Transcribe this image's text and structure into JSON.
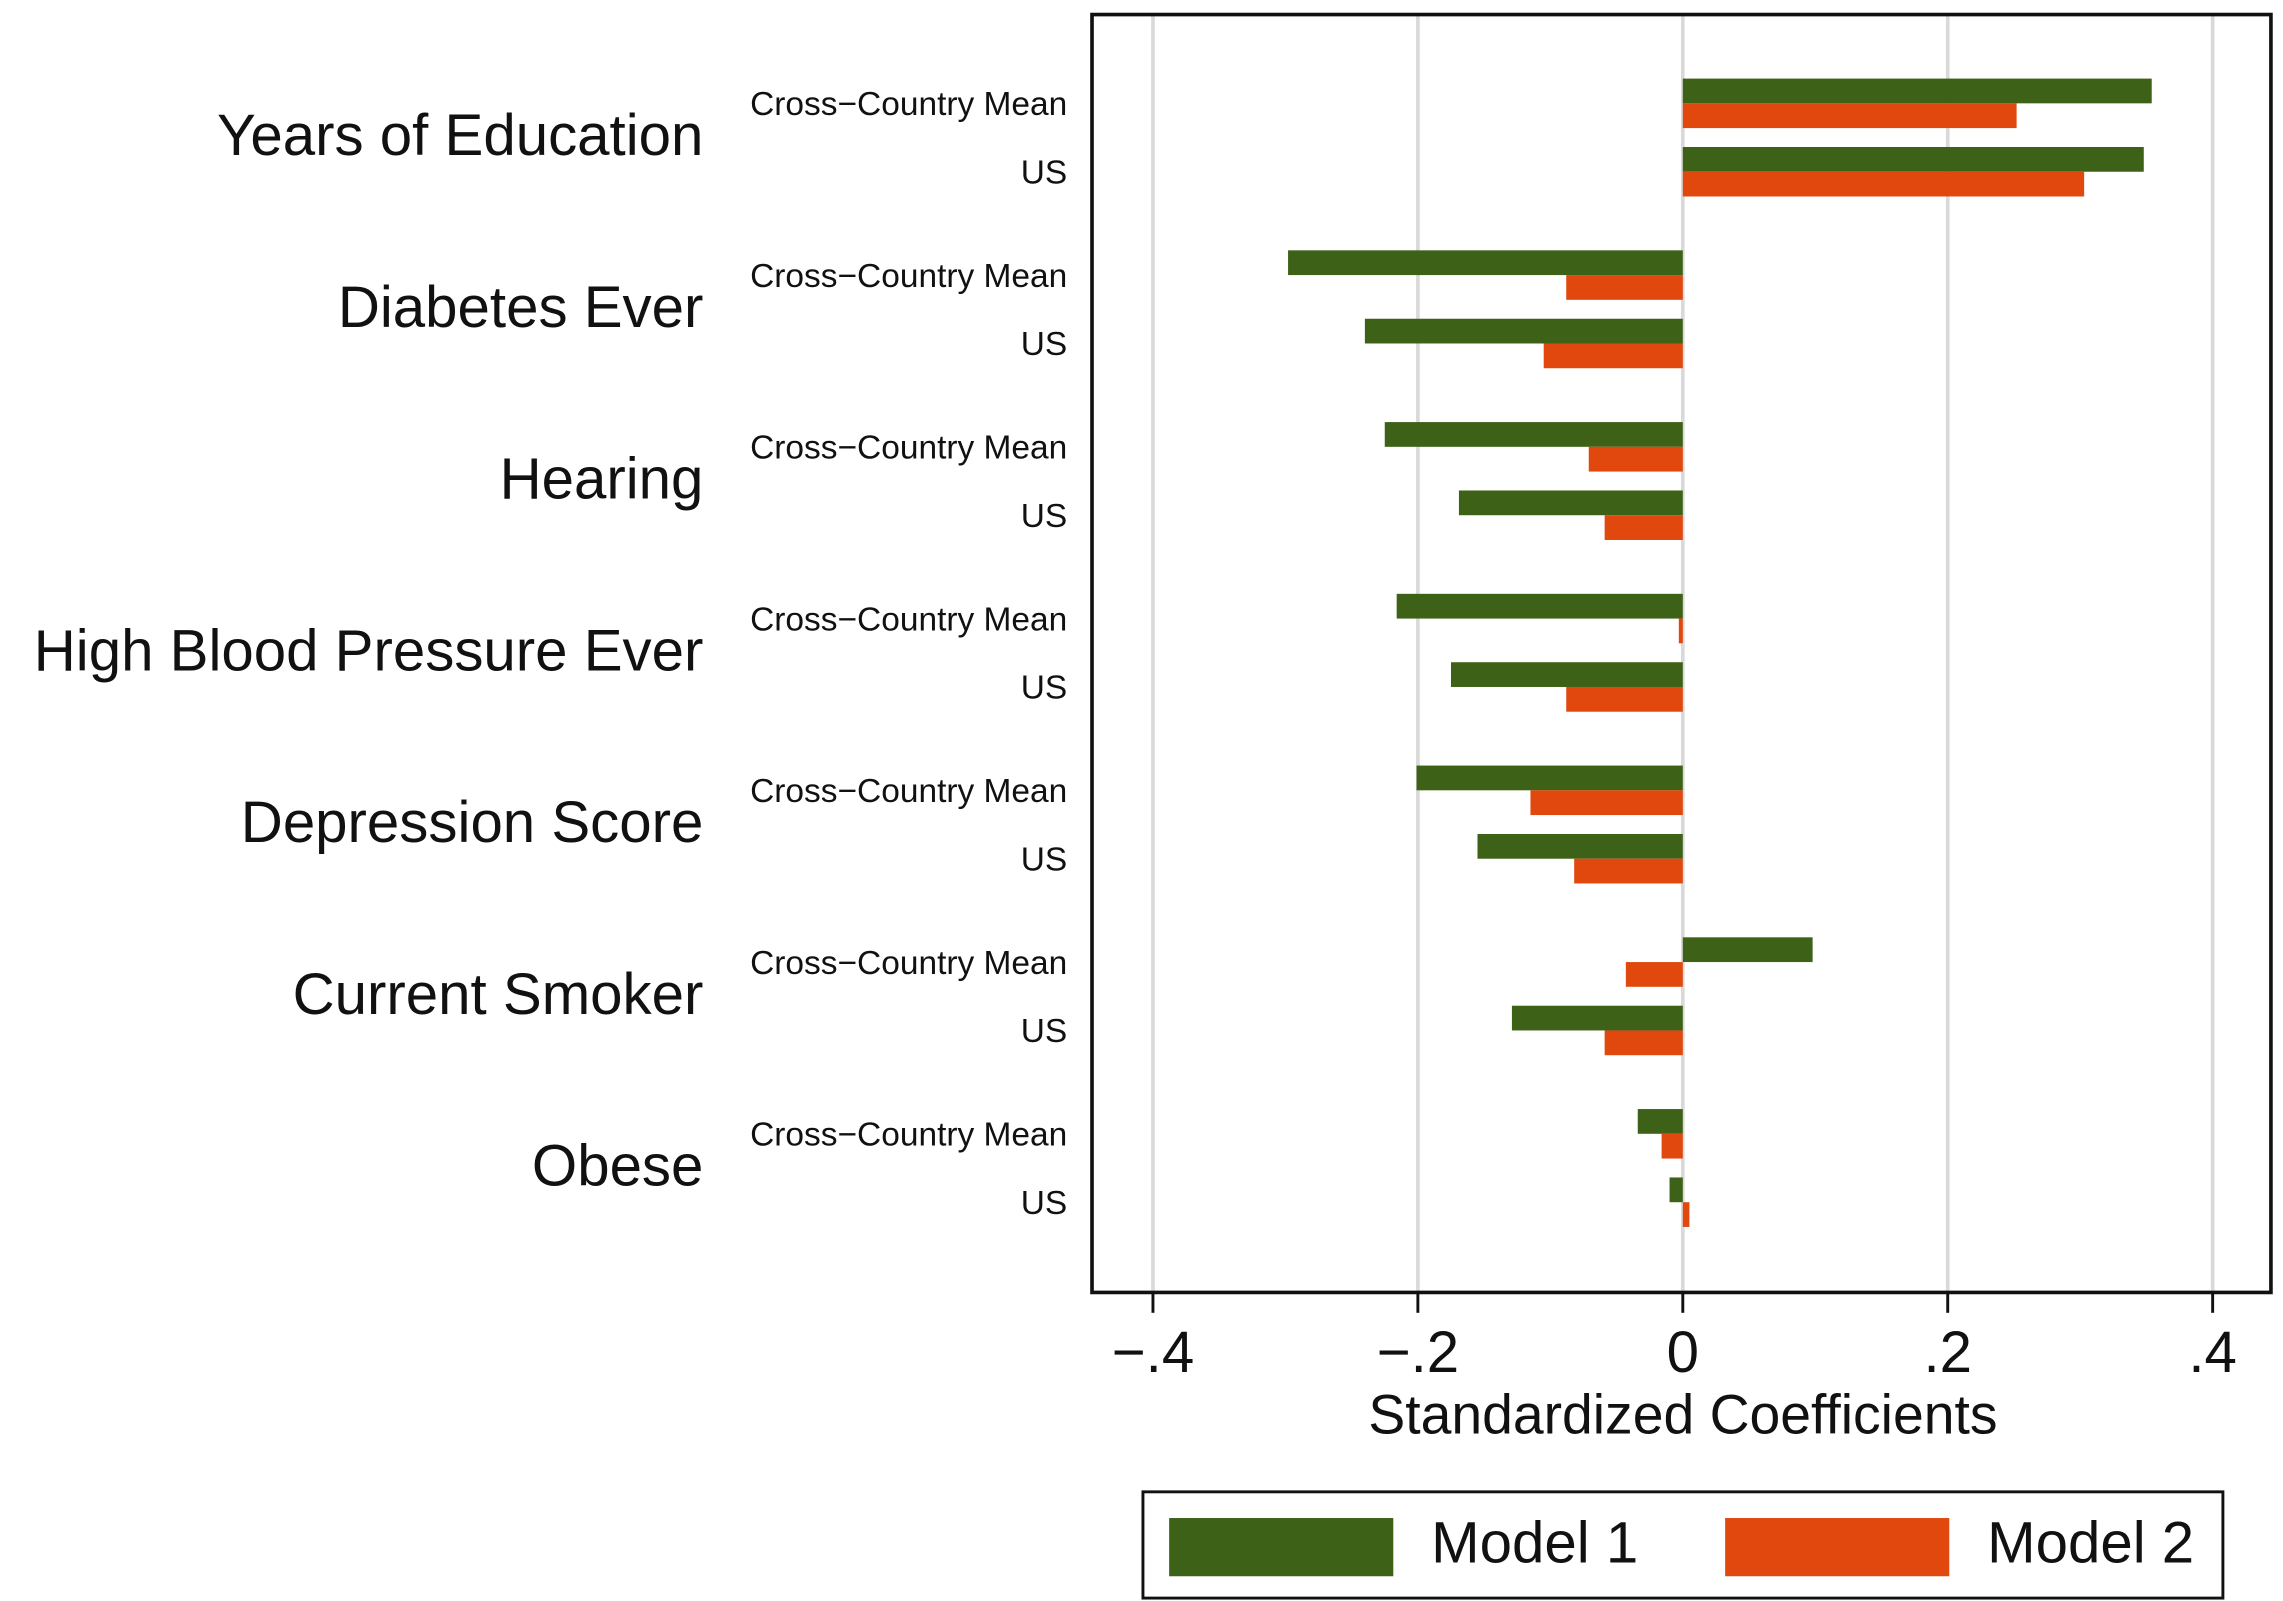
{
  "chart_data": {
    "type": "bar",
    "orientation": "horizontal",
    "x_label": "Standardized Coefficients",
    "groups": [
      "Years of Education",
      "Diabetes Ever",
      "Hearing",
      "High Blood Pressure Ever",
      "Depression Score",
      "Current Smoker",
      "Obese"
    ],
    "categories": [
      "Cross−Country Mean",
      "US",
      "Cross−Country Mean",
      "US",
      "Cross−Country Mean",
      "US",
      "Cross−Country Mean",
      "US",
      "Cross−Country Mean",
      "US",
      "Cross−Country Mean",
      "US",
      "Cross−Country Mean",
      "US"
    ],
    "series": [
      {
        "name": "Model 1",
        "color": "#3d6117",
        "values": [
          0.354,
          0.348,
          -0.298,
          -0.24,
          -0.225,
          -0.169,
          -0.216,
          -0.175,
          -0.201,
          -0.155,
          0.098,
          -0.129,
          -0.034,
          -0.01
        ]
      },
      {
        "name": "Model 2",
        "color": "#e0480e",
        "values": [
          0.252,
          0.303,
          -0.088,
          -0.105,
          -0.071,
          -0.059,
          -0.003,
          -0.088,
          -0.115,
          -0.082,
          -0.043,
          -0.059,
          -0.016,
          0.005
        ]
      }
    ],
    "xlim": [
      -0.446,
      0.444
    ],
    "xticks": [
      {
        "value": -0.4,
        "label": "−.4"
      },
      {
        "value": -0.2,
        "label": "−.2"
      },
      0,
      {
        "value": 0.2,
        "label": ".2"
      },
      {
        "value": 0.4,
        "label": ".4"
      }
    ],
    "grid": true,
    "legend": "bottom"
  }
}
